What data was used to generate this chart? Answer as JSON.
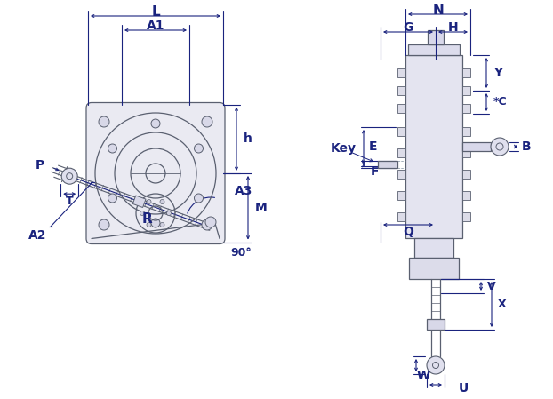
{
  "bg_color": "#ffffff",
  "lc": "#1a237e",
  "dc": "#5a6070",
  "dc2": "#8090a0",
  "lw_body": 0.9,
  "lw_dim": 0.8,
  "fs": 9,
  "fs_bold": 10,
  "labels": {
    "L": "L",
    "A1": "A1",
    "h": "h",
    "M": "M",
    "A3": "A3",
    "A2": "A2",
    "R": "R",
    "P": "P",
    "T": "T",
    "angle": "90°",
    "N": "N",
    "G": "G",
    "H": "H",
    "Y": "Y",
    "C": "*C",
    "B": "B",
    "E": "E",
    "F": "F",
    "Key": "Key",
    "Q": "Q",
    "V": "V",
    "X": "X",
    "W": "W",
    "U": "U"
  }
}
